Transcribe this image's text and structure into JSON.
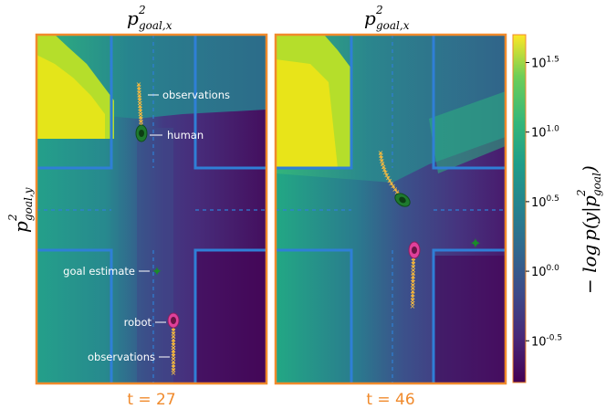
{
  "chart_data": {
    "type": "heatmap",
    "panels": [
      {
        "id": "left",
        "title_base": "p",
        "title_sup": "2",
        "title_sub": "goal,x",
        "time_label": "t = 27",
        "annotations": {
          "observations_top": "observations",
          "human": "human",
          "goal_estimate": "goal estimate",
          "robot": "robot",
          "observations_bottom": "observations"
        }
      },
      {
        "id": "right",
        "title_base": "p",
        "title_sup": "2",
        "title_sub": "goal,x",
        "time_label": "t = 46"
      }
    ],
    "ylabel": {
      "base": "p",
      "sup": "2",
      "sub": "goal,y"
    },
    "colorbar": {
      "label": "− log p(y|p²goal)",
      "scale": "log",
      "ticks": [
        {
          "base": "10",
          "exp": "1.5",
          "value": 1.5
        },
        {
          "base": "10",
          "exp": "1.0",
          "value": 1.0
        },
        {
          "base": "10",
          "exp": "0.5",
          "value": 0.5
        },
        {
          "base": "10",
          "exp": "0.0",
          "value": 0.0
        },
        {
          "base": "10",
          "exp": "-0.5",
          "value": -0.5
        }
      ],
      "range": [
        -0.8,
        1.7
      ],
      "colormap": "viridis"
    },
    "colors": {
      "road_lines": "#2f7fd6",
      "frame": "#f08a2c",
      "trajectory": "#f5a623",
      "human_marker": "#1e7a2e",
      "robot_marker": "#e0409a",
      "goal_marker": "#1a8a2a"
    }
  }
}
